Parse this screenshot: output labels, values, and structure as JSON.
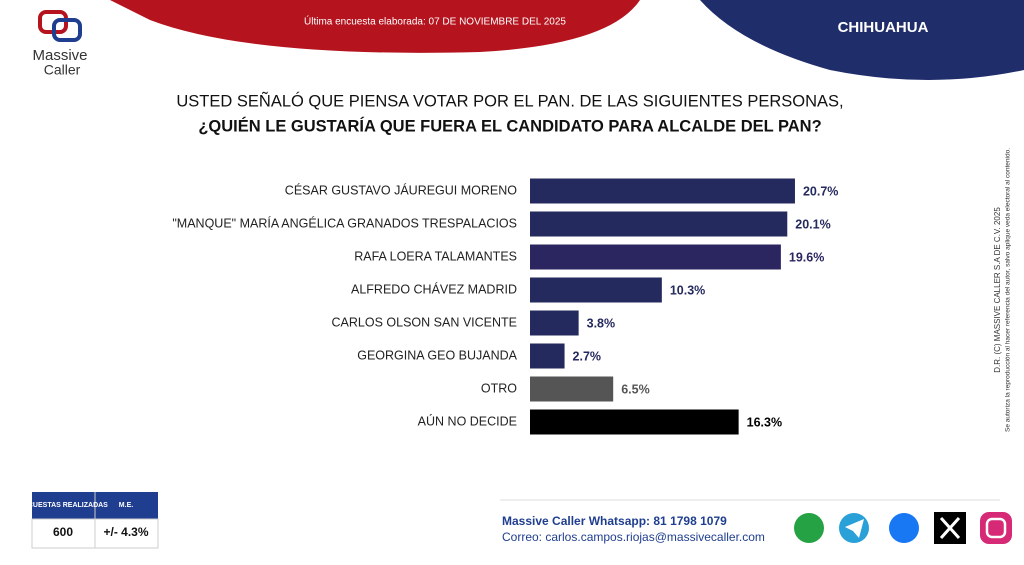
{
  "header": {
    "survey_date": "Última encuesta elaborada: 07 DE NOVIEMBRE DEL 2025",
    "region": "CHIHUAHUA",
    "logo_line1": "Massive",
    "logo_line2": "Caller"
  },
  "chart_data": {
    "type": "bar",
    "orientation": "horizontal",
    "title_line1": "USTED SEÑALÓ QUE PIENSA VOTAR POR EL PAN. DE LAS SIGUIENTES PERSONAS,",
    "title_line2": "¿QUIÉN LE GUSTARÍA QUE FUERA EL CANDIDATO PARA ALCALDE DEL PAN?",
    "categories": [
      "CÉSAR GUSTAVO JÁUREGUI MORENO",
      "\"MANQUE\" MARÍA ANGÉLICA GRANADOS TRESPALACIOS",
      "RAFA LOERA TALAMANTES",
      "ALFREDO CHÁVEZ MADRID",
      "CARLOS OLSON SAN VICENTE",
      "GEORGINA GEO BUJANDA",
      "OTRO",
      "AÚN NO DECIDE"
    ],
    "values": [
      20.7,
      20.1,
      19.6,
      10.3,
      3.8,
      2.7,
      6.5,
      16.3
    ],
    "value_labels": [
      "20.7%",
      "20.1%",
      "19.6%",
      "10.3%",
      "3.8%",
      "2.7%",
      "6.5%",
      "16.3%"
    ],
    "colors": [
      "#252a5e",
      "#252a5e",
      "#2b2660",
      "#252a5e",
      "#252a5e",
      "#252a5e",
      "#555555",
      "#000000"
    ]
  },
  "side_note": {
    "copyright": "D.R. (C) MASSIVE CALLER S.A DE C.V. 2025",
    "notice": "Se autoriza la reproducción al hacer referencia del autor, salvo aplique veda electoral al contenido."
  },
  "table": {
    "headers": [
      "ENCUESTAS REALIZADAS",
      "M.E."
    ],
    "values": [
      600,
      "+/- 4.3%"
    ]
  },
  "contact": {
    "whatsapp": "Massive Caller Whatsapp: 81 1798 1079",
    "email": "Correo: carlos.campos.riojas@massivecaller.com"
  }
}
